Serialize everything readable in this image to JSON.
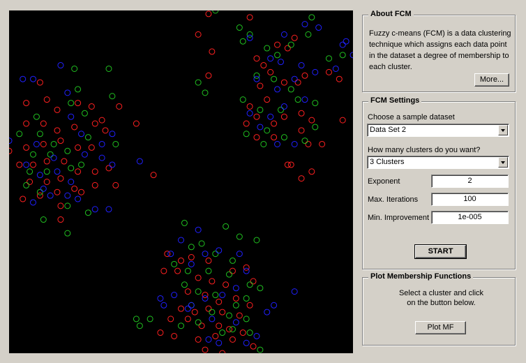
{
  "about": {
    "title": "About FCM",
    "description": "Fuzzy c-means (FCM) is a data clustering technique which assigns each data point in the dataset a degree of membership to each cluster.",
    "more_label": "More..."
  },
  "settings": {
    "title": "FCM Settings",
    "dataset_label": "Choose a sample dataset",
    "dataset_value": "Data Set 2",
    "clusters_label": "How many clusters do you want?",
    "clusters_value": "3 Clusters",
    "exponent_label": "Exponent",
    "exponent_value": "2",
    "iterations_label": "Max. Iterations",
    "iterations_value": "100",
    "improvement_label": "Min. Improvement",
    "improvement_value": "1e-005",
    "start_label": "START"
  },
  "plot_mf": {
    "title": "Plot Membership Functions",
    "instructions": "Select a cluster and click on the button below.",
    "button_label": "Plot MF"
  },
  "colors": {
    "plot_bg": "#000000",
    "red": "#ff2020",
    "green": "#20c020",
    "blue": "#2020ff"
  },
  "chart_data": {
    "type": "scatter",
    "xlim": [
      0,
      1
    ],
    "ylim": [
      0,
      1
    ],
    "series": [
      {
        "color": "red",
        "points": [
          [
            0.55,
            0.93
          ],
          [
            0.58,
            0.99
          ],
          [
            0.7,
            0.98
          ],
          [
            0.59,
            0.88
          ],
          [
            0.58,
            0.81
          ],
          [
            0.83,
            0.92
          ],
          [
            0.78,
            0.9
          ],
          [
            0.81,
            0.89
          ],
          [
            0.72,
            0.86
          ],
          [
            0.74,
            0.84
          ],
          [
            0.76,
            0.82
          ],
          [
            0.8,
            0.79
          ],
          [
            0.84,
            0.79
          ],
          [
            0.86,
            0.81
          ],
          [
            0.73,
            0.78
          ],
          [
            0.75,
            0.74
          ],
          [
            0.7,
            0.72
          ],
          [
            0.72,
            0.69
          ],
          [
            0.77,
            0.67
          ],
          [
            0.8,
            0.69
          ],
          [
            0.85,
            0.7
          ],
          [
            0.88,
            0.68
          ],
          [
            0.93,
            0.82
          ],
          [
            0.96,
            0.8
          ],
          [
            0.69,
            0.67
          ],
          [
            0.72,
            0.63
          ],
          [
            0.77,
            0.63
          ],
          [
            0.85,
            0.65
          ],
          [
            0.87,
            0.61
          ],
          [
            0.91,
            0.61
          ],
          [
            0.97,
            0.68
          ],
          [
            0.81,
            0.55
          ],
          [
            0.88,
            0.53
          ],
          [
            0.09,
            0.79
          ],
          [
            0.05,
            0.73
          ],
          [
            0.11,
            0.74
          ],
          [
            0.14,
            0.71
          ],
          [
            0.2,
            0.73
          ],
          [
            0.24,
            0.72
          ],
          [
            0.27,
            0.68
          ],
          [
            0.32,
            0.72
          ],
          [
            0.37,
            0.67
          ],
          [
            0.05,
            0.67
          ],
          [
            0.1,
            0.67
          ],
          [
            0.14,
            0.65
          ],
          [
            0.19,
            0.66
          ],
          [
            0.25,
            0.67
          ],
          [
            0.28,
            0.65
          ],
          [
            0.0,
            0.59
          ],
          [
            0.05,
            0.6
          ],
          [
            0.1,
            0.61
          ],
          [
            0.15,
            0.62
          ],
          [
            0.2,
            0.6
          ],
          [
            0.24,
            0.6
          ],
          [
            0.03,
            0.55
          ],
          [
            0.07,
            0.55
          ],
          [
            0.11,
            0.56
          ],
          [
            0.16,
            0.56
          ],
          [
            0.2,
            0.53
          ],
          [
            0.25,
            0.53
          ],
          [
            0.29,
            0.54
          ],
          [
            0.42,
            0.52
          ],
          [
            0.06,
            0.5
          ],
          [
            0.11,
            0.5
          ],
          [
            0.15,
            0.51
          ],
          [
            0.19,
            0.48
          ],
          [
            0.25,
            0.49
          ],
          [
            0.31,
            0.49
          ],
          [
            0.04,
            0.45
          ],
          [
            0.09,
            0.46
          ],
          [
            0.14,
            0.47
          ],
          [
            0.21,
            0.47
          ],
          [
            0.15,
            0.43
          ],
          [
            0.15,
            0.39
          ],
          [
            0.82,
            0.55
          ],
          [
            0.85,
            0.51
          ],
          [
            0.46,
            0.29
          ],
          [
            0.5,
            0.27
          ],
          [
            0.53,
            0.28
          ],
          [
            0.58,
            0.27
          ],
          [
            0.65,
            0.24
          ],
          [
            0.69,
            0.25
          ],
          [
            0.45,
            0.24
          ],
          [
            0.49,
            0.24
          ],
          [
            0.55,
            0.22
          ],
          [
            0.59,
            0.21
          ],
          [
            0.63,
            0.2
          ],
          [
            0.71,
            0.21
          ],
          [
            0.52,
            0.18
          ],
          [
            0.57,
            0.17
          ],
          [
            0.61,
            0.15
          ],
          [
            0.66,
            0.16
          ],
          [
            0.7,
            0.14
          ],
          [
            0.5,
            0.13
          ],
          [
            0.54,
            0.12
          ],
          [
            0.58,
            0.13
          ],
          [
            0.62,
            0.12
          ],
          [
            0.67,
            0.11
          ],
          [
            0.47,
            0.1
          ],
          [
            0.52,
            0.1
          ],
          [
            0.56,
            0.08
          ],
          [
            0.61,
            0.08
          ],
          [
            0.64,
            0.07
          ],
          [
            0.68,
            0.06
          ],
          [
            0.44,
            0.06
          ],
          [
            0.48,
            0.05
          ],
          [
            0.55,
            0.04
          ],
          [
            0.6,
            0.05
          ],
          [
            0.65,
            0.04
          ],
          [
            0.57,
            0.01
          ],
          [
            0.62,
            0.0
          ],
          [
            0.71,
            0.02
          ]
        ]
      },
      {
        "color": "green",
        "points": [
          [
            0.6,
            1.0
          ],
          [
            0.88,
            0.98
          ],
          [
            0.67,
            0.95
          ],
          [
            0.7,
            0.93
          ],
          [
            0.68,
            0.91
          ],
          [
            0.75,
            0.89
          ],
          [
            0.78,
            0.87
          ],
          [
            0.82,
            0.9
          ],
          [
            0.87,
            0.93
          ],
          [
            0.93,
            0.86
          ],
          [
            0.97,
            0.87
          ],
          [
            0.72,
            0.81
          ],
          [
            0.77,
            0.8
          ],
          [
            0.82,
            0.77
          ],
          [
            0.55,
            0.79
          ],
          [
            0.57,
            0.76
          ],
          [
            0.68,
            0.74
          ],
          [
            0.73,
            0.71
          ],
          [
            0.79,
            0.71
          ],
          [
            0.84,
            0.74
          ],
          [
            0.89,
            0.73
          ],
          [
            0.75,
            0.65
          ],
          [
            0.8,
            0.63
          ],
          [
            0.86,
            0.62
          ],
          [
            0.89,
            0.66
          ],
          [
            0.69,
            0.64
          ],
          [
            0.74,
            0.61
          ],
          [
            0.19,
            0.83
          ],
          [
            0.29,
            0.83
          ],
          [
            0.2,
            0.77
          ],
          [
            0.3,
            0.75
          ],
          [
            0.18,
            0.73
          ],
          [
            0.22,
            0.7
          ],
          [
            0.08,
            0.69
          ],
          [
            0.03,
            0.64
          ],
          [
            0.09,
            0.64
          ],
          [
            0.13,
            0.61
          ],
          [
            0.17,
            0.59
          ],
          [
            0.23,
            0.63
          ],
          [
            0.31,
            0.61
          ],
          [
            0.07,
            0.58
          ],
          [
            0.12,
            0.58
          ],
          [
            0.18,
            0.54
          ],
          [
            0.21,
            0.55
          ],
          [
            0.06,
            0.53
          ],
          [
            0.11,
            0.53
          ],
          [
            0.09,
            0.47
          ],
          [
            0.05,
            0.49
          ],
          [
            0.17,
            0.43
          ],
          [
            0.1,
            0.39
          ],
          [
            0.23,
            0.41
          ],
          [
            0.17,
            0.35
          ],
          [
            0.51,
            0.38
          ],
          [
            0.63,
            0.37
          ],
          [
            0.67,
            0.34
          ],
          [
            0.72,
            0.33
          ],
          [
            0.53,
            0.31
          ],
          [
            0.56,
            0.32
          ],
          [
            0.6,
            0.29
          ],
          [
            0.65,
            0.27
          ],
          [
            0.48,
            0.26
          ],
          [
            0.52,
            0.24
          ],
          [
            0.58,
            0.24
          ],
          [
            0.64,
            0.23
          ],
          [
            0.7,
            0.2
          ],
          [
            0.73,
            0.19
          ],
          [
            0.51,
            0.2
          ],
          [
            0.55,
            0.18
          ],
          [
            0.6,
            0.17
          ],
          [
            0.66,
            0.14
          ],
          [
            0.69,
            0.16
          ],
          [
            0.53,
            0.14
          ],
          [
            0.59,
            0.12
          ],
          [
            0.64,
            0.11
          ],
          [
            0.69,
            0.1
          ],
          [
            0.5,
            0.08
          ],
          [
            0.55,
            0.09
          ],
          [
            0.62,
            0.06
          ],
          [
            0.65,
            0.07
          ],
          [
            0.7,
            0.06
          ],
          [
            0.37,
            0.1
          ],
          [
            0.38,
            0.08
          ],
          [
            0.41,
            0.1
          ],
          [
            0.73,
            0.01
          ]
        ]
      },
      {
        "color": "blue",
        "points": [
          [
            0.7,
            0.92
          ],
          [
            0.8,
            0.93
          ],
          [
            0.86,
            0.96
          ],
          [
            0.9,
            0.95
          ],
          [
            0.98,
            0.91
          ],
          [
            0.76,
            0.86
          ],
          [
            0.79,
            0.85
          ],
          [
            0.85,
            0.84
          ],
          [
            0.89,
            0.82
          ],
          [
            0.95,
            0.83
          ],
          [
            0.72,
            0.8
          ],
          [
            0.78,
            0.77
          ],
          [
            0.83,
            0.8
          ],
          [
            0.86,
            0.74
          ],
          [
            0.7,
            0.7
          ],
          [
            0.76,
            0.69
          ],
          [
            0.8,
            0.72
          ],
          [
            0.73,
            0.66
          ],
          [
            0.78,
            0.61
          ],
          [
            0.83,
            0.61
          ],
          [
            0.97,
            0.9
          ],
          [
            1.0,
            0.87
          ],
          [
            0.15,
            0.84
          ],
          [
            0.04,
            0.8
          ],
          [
            0.07,
            0.8
          ],
          [
            0.17,
            0.76
          ],
          [
            0.18,
            0.69
          ],
          [
            0.21,
            0.64
          ],
          [
            0.27,
            0.61
          ],
          [
            0.3,
            0.64
          ],
          [
            0.0,
            0.62
          ],
          [
            0.08,
            0.61
          ],
          [
            0.13,
            0.57
          ],
          [
            0.22,
            0.58
          ],
          [
            0.27,
            0.57
          ],
          [
            0.38,
            0.56
          ],
          [
            0.05,
            0.55
          ],
          [
            0.09,
            0.52
          ],
          [
            0.14,
            0.53
          ],
          [
            0.18,
            0.5
          ],
          [
            0.3,
            0.55
          ],
          [
            0.2,
            0.45
          ],
          [
            0.1,
            0.48
          ],
          [
            0.07,
            0.44
          ],
          [
            0.12,
            0.46
          ],
          [
            0.17,
            0.46
          ],
          [
            0.25,
            0.42
          ],
          [
            0.29,
            0.42
          ],
          [
            0.47,
            0.29
          ],
          [
            0.5,
            0.33
          ],
          [
            0.55,
            0.36
          ],
          [
            0.53,
            0.26
          ],
          [
            0.57,
            0.29
          ],
          [
            0.61,
            0.3
          ],
          [
            0.67,
            0.29
          ],
          [
            0.69,
            0.24
          ],
          [
            0.44,
            0.16
          ],
          [
            0.48,
            0.17
          ],
          [
            0.53,
            0.14
          ],
          [
            0.57,
            0.16
          ],
          [
            0.62,
            0.17
          ],
          [
            0.66,
            0.19
          ],
          [
            0.45,
            0.14
          ],
          [
            0.52,
            0.13
          ],
          [
            0.59,
            0.1
          ],
          [
            0.66,
            0.09
          ],
          [
            0.75,
            0.12
          ],
          [
            0.83,
            0.18
          ],
          [
            0.77,
            0.14
          ],
          [
            0.58,
            0.04
          ],
          [
            0.61,
            0.03
          ],
          [
            0.69,
            0.03
          ],
          [
            0.72,
            0.05
          ]
        ]
      }
    ]
  }
}
